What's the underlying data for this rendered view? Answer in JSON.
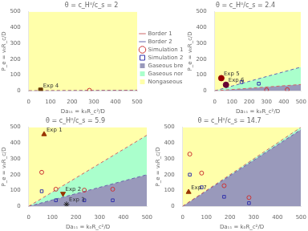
{
  "chart_data": [
    {
      "type": "line",
      "title": "θ = c_H⁰/c_s = 2",
      "xlabel": "Da₁₁ = k₀R_c²/D",
      "ylabel": "P_e = v₀R_c/D",
      "xlim": [
        0,
        500
      ],
      "ylim": [
        0,
        500
      ],
      "xticks": [
        0,
        100,
        200,
        300,
        400,
        500
      ],
      "yticks": [
        0,
        100,
        200,
        300,
        400,
        500
      ],
      "grid": false,
      "legend": "right",
      "series": [
        {
          "name": "Border 1",
          "type": "line",
          "line_style": "dashed",
          "color": "#cc6666",
          "x": [
            0,
            500
          ],
          "values": [
            0,
            2
          ]
        },
        {
          "name": "Border 2",
          "type": "line",
          "line_style": "dashed",
          "color": "#6666aa",
          "x": [
            0,
            500
          ],
          "values": [
            0,
            4
          ]
        },
        {
          "name": "Simulation 1",
          "type": "scatter",
          "marker": "circle-open",
          "color": "#cc3333",
          "x": [
            280
          ],
          "values": [
            3
          ]
        },
        {
          "name": "Simulation 2",
          "type": "scatter",
          "marker": "square-open",
          "color": "#3333aa",
          "x": [],
          "values": []
        },
        {
          "name": "Gaseous breathing",
          "type": "area",
          "color": "#9999bb"
        },
        {
          "name": "Gaseous nonbreathing",
          "type": "area",
          "color": "#aaffcc"
        },
        {
          "name": "Nongaseous",
          "type": "area",
          "color": "#ffffaa"
        }
      ],
      "annotations": [
        {
          "text": "Exp 4",
          "x": 55,
          "y": 5,
          "marker": "square",
          "color": "#6b3a00"
        }
      ]
    },
    {
      "type": "line",
      "title": "θ = c_H⁰/c_s = 2.4",
      "xlabel": "Da₁₁ = k₀R_c²/D",
      "ylabel": "P_e = v₀R_c/D",
      "xlim": [
        0,
        500
      ],
      "ylim": [
        0,
        500
      ],
      "xticks": [
        0,
        100,
        200,
        300,
        400,
        500
      ],
      "yticks": [
        0,
        100,
        200,
        300,
        400,
        500
      ],
      "grid": false,
      "series": [
        {
          "name": "Border 1",
          "type": "line",
          "line_style": "dashed",
          "color": "#cc6666",
          "x": [
            0,
            500
          ],
          "values": [
            0,
            40
          ]
        },
        {
          "name": "Border 2",
          "type": "line",
          "line_style": "dashed",
          "color": "#6666aa",
          "x": [
            0,
            500
          ],
          "values": [
            0,
            150
          ]
        },
        {
          "name": "Simulation 1",
          "type": "scatter",
          "marker": "circle-open",
          "color": "#cc3333",
          "x": [
            300,
            420
          ],
          "values": [
            5,
            7
          ]
        },
        {
          "name": "Simulation 2",
          "type": "scatter",
          "marker": "square-open",
          "color": "#3333aa",
          "x": [
            155,
            255
          ],
          "values": [
            55,
            45
          ]
        },
        {
          "name": "Gaseous breathing",
          "type": "area",
          "color": "#9999bb"
        },
        {
          "name": "Gaseous nonbreathing",
          "type": "area",
          "color": "#aaffcc"
        },
        {
          "name": "Nongaseous",
          "type": "area",
          "color": "#ffffaa"
        }
      ],
      "annotations": [
        {
          "text": "Exp 5",
          "x": 38,
          "y": 80,
          "marker": "circle",
          "color": "#990000"
        },
        {
          "text": "Exp 6",
          "x": 65,
          "y": 38,
          "marker": "circle",
          "color": "#660033"
        }
      ]
    },
    {
      "type": "line",
      "title": "θ = c_H⁰/c_s = 5.9",
      "xlabel": "Da₁₁ = k₀R_c²/D",
      "ylabel": "P_e = v₀R_c/D",
      "xlim": [
        0,
        500
      ],
      "ylim": [
        0,
        500
      ],
      "xticks": [
        0,
        100,
        200,
        300,
        400,
        500
      ],
      "yticks": [
        0,
        100,
        200,
        300,
        400,
        500
      ],
      "grid": false,
      "series": [
        {
          "name": "Border 1",
          "type": "line",
          "line_style": "dashed",
          "color": "#cc6666",
          "x": [
            0,
            500
          ],
          "values": [
            0,
            450
          ]
        },
        {
          "name": "Border 2",
          "type": "line",
          "line_style": "dashed",
          "color": "#6666aa",
          "x": [
            0,
            500
          ],
          "values": [
            0,
            200
          ]
        },
        {
          "name": "Simulation 1",
          "type": "scatter",
          "marker": "circle-open",
          "color": "#cc3333",
          "x": [
            55,
            115,
            235,
            355
          ],
          "values": [
            215,
            108,
            102,
            108
          ]
        },
        {
          "name": "Simulation 2",
          "type": "scatter",
          "marker": "square-open",
          "color": "#3333aa",
          "x": [
            55,
            115,
            235,
            355
          ],
          "values": [
            95,
            38,
            38,
            38
          ]
        },
        {
          "name": "Gaseous breathing",
          "type": "area",
          "color": "#9999bb"
        },
        {
          "name": "Gaseous nonbreathing",
          "type": "area",
          "color": "#aaffcc"
        },
        {
          "name": "Nongaseous",
          "type": "area",
          "color": "#ffffaa"
        }
      ],
      "annotations": [
        {
          "text": "Exp 1",
          "x": 65,
          "y": 455,
          "marker": "triangle-up",
          "color": "#993300"
        },
        {
          "text": "Exp 2",
          "x": 145,
          "y": 80,
          "marker": "triangle-down",
          "color": "#993300"
        },
        {
          "text": "Exp 3",
          "x": 160,
          "y": 12,
          "marker": "star",
          "color": "#222222"
        }
      ]
    },
    {
      "type": "line",
      "title": "θ = c_H⁰/c_s = 14.7",
      "xlabel": "Da₁₁ = k₀R_c²/D",
      "ylabel": "P_e = v₀R_c/D",
      "xlim": [
        0,
        500
      ],
      "ylim": [
        0,
        500
      ],
      "xticks": [
        0,
        100,
        200,
        300,
        400,
        500
      ],
      "yticks": [
        0,
        100,
        200,
        300,
        400,
        500
      ],
      "grid": false,
      "series": [
        {
          "name": "Border 1",
          "type": "line",
          "line_style": "dashed",
          "color": "#cc6666",
          "x": [
            0,
            500
          ],
          "values": [
            0,
            500
          ]
        },
        {
          "name": "Border 2",
          "type": "line",
          "line_style": "dashed",
          "color": "#6666aa",
          "x": [
            0,
            500
          ],
          "values": [
            0,
            485
          ]
        },
        {
          "name": "Simulation 1",
          "type": "scatter",
          "marker": "circle-open",
          "color": "#cc3333",
          "x": [
            30,
            80,
            175,
            280
          ],
          "values": [
            330,
            210,
            130,
            55
          ]
        },
        {
          "name": "Simulation 2",
          "type": "scatter",
          "marker": "square-open",
          "color": "#3333aa",
          "x": [
            30,
            80,
            175,
            280
          ],
          "values": [
            200,
            120,
            60,
            20
          ]
        },
        {
          "name": "Gaseous breathing",
          "type": "area",
          "color": "#9999bb"
        },
        {
          "name": "Gaseous nonbreathing",
          "type": "area",
          "color": "#aaffcc"
        },
        {
          "name": "Nongaseous",
          "type": "area",
          "color": "#ffffaa"
        }
      ],
      "annotations": [
        {
          "text": "Exp 7",
          "x": 25,
          "y": 90,
          "marker": "triangle-up",
          "color": "#993300"
        }
      ]
    }
  ]
}
